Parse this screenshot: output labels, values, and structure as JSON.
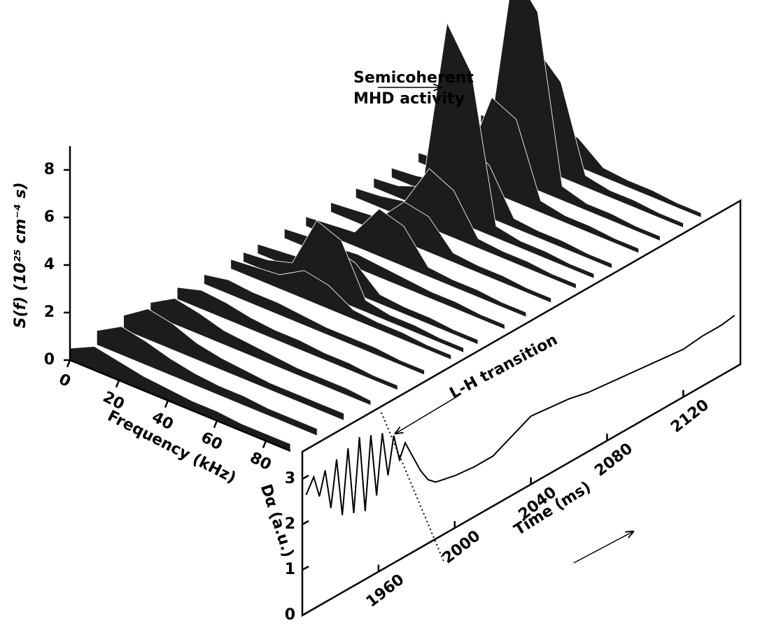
{
  "chart_data": {
    "type": "waterfall",
    "annotation": [
      "Semicoherent",
      "MHD activity"
    ],
    "surface": {
      "z_label": "S(f) (10²⁵ cm⁻⁴ s)",
      "x_label": "Frequency (kHz)",
      "xlim": [
        0,
        90
      ],
      "xticks": [
        0,
        20,
        40,
        60,
        80
      ],
      "zlim": [
        0,
        9
      ],
      "zticks": [
        0,
        2,
        4,
        6,
        8
      ],
      "frequencies": [
        0,
        10,
        20,
        30,
        40,
        50,
        60,
        70,
        80,
        90
      ],
      "times": [
        1920,
        1935,
        1950,
        1965,
        1980,
        1995,
        2010,
        2017,
        2025,
        2040,
        2052,
        2066,
        2080,
        2090,
        2100,
        2115,
        2127,
        2140,
        2150
      ],
      "values": [
        [
          0.5,
          1.0,
          0.8,
          0.6,
          0.5,
          0.4,
          0.4,
          0.3,
          0.3,
          0.3
        ],
        [
          0.6,
          1.2,
          1.0,
          0.7,
          0.5,
          0.4,
          0.4,
          0.3,
          0.3,
          0.3
        ],
        [
          0.6,
          1.3,
          1.1,
          0.7,
          0.5,
          0.4,
          0.3,
          0.3,
          0.3,
          0.3
        ],
        [
          0.5,
          1.1,
          0.9,
          0.6,
          0.5,
          0.4,
          0.3,
          0.3,
          0.3,
          0.2
        ],
        [
          0.5,
          0.8,
          0.7,
          0.5,
          0.4,
          0.4,
          0.3,
          0.3,
          0.2,
          0.2
        ],
        [
          0.4,
          0.6,
          0.5,
          0.5,
          0.4,
          0.3,
          0.3,
          0.3,
          0.2,
          0.2
        ],
        [
          0.4,
          0.5,
          0.6,
          1.2,
          1.0,
          0.4,
          0.3,
          0.3,
          0.2,
          0.2
        ],
        [
          0.4,
          0.5,
          0.8,
          3.0,
          2.6,
          0.5,
          0.3,
          0.3,
          0.2,
          0.2
        ],
        [
          0.4,
          0.5,
          0.6,
          1.6,
          1.3,
          0.4,
          0.3,
          0.3,
          0.2,
          0.2
        ],
        [
          0.4,
          0.5,
          0.5,
          0.6,
          0.5,
          0.4,
          0.3,
          0.3,
          0.2,
          0.2
        ],
        [
          0.4,
          0.5,
          0.6,
          2.0,
          1.7,
          0.4,
          0.3,
          0.3,
          0.2,
          0.2
        ],
        [
          0.4,
          0.5,
          0.6,
          1.7,
          1.5,
          0.4,
          0.3,
          0.3,
          0.2,
          0.2
        ],
        [
          0.4,
          0.5,
          0.7,
          2.5,
          2.0,
          0.4,
          0.3,
          0.3,
          0.2,
          0.2
        ],
        [
          0.4,
          0.5,
          0.9,
          8.2,
          6.5,
          0.5,
          0.3,
          0.3,
          0.2,
          0.2
        ],
        [
          0.4,
          0.5,
          0.7,
          2.8,
          2.2,
          0.4,
          0.3,
          0.3,
          0.2,
          0.2
        ],
        [
          0.4,
          0.5,
          1.0,
          4.0,
          3.5,
          0.5,
          0.3,
          0.3,
          0.2,
          0.2
        ],
        [
          0.5,
          0.6,
          1.2,
          8.8,
          7.5,
          0.6,
          0.3,
          0.3,
          0.2,
          0.2
        ],
        [
          0.5,
          0.6,
          1.0,
          5.0,
          4.0,
          0.5,
          0.3,
          0.3,
          0.2,
          0.2
        ],
        [
          0.5,
          0.6,
          0.8,
          1.5,
          1.2,
          0.4,
          0.3,
          0.3,
          0.2,
          0.2
        ]
      ]
    },
    "trace": {
      "y_label": "Dα (a.u.)",
      "x_label": "Time (ms)",
      "annotation": "L-H transition",
      "xlim": [
        1920,
        2150
      ],
      "xticks": [
        1960,
        2000,
        2040,
        2080,
        2120
      ],
      "ylim": [
        0,
        3.6
      ],
      "yticks": [
        0,
        1,
        2,
        3
      ],
      "x": [
        1922,
        1926,
        1929,
        1932,
        1935,
        1938,
        1941,
        1944,
        1947,
        1950,
        1953,
        1956,
        1959,
        1962,
        1965,
        1968,
        1971,
        1974,
        1978,
        1982,
        1986,
        1990,
        1995,
        2000,
        2010,
        2020,
        2030,
        2040,
        2050,
        2060,
        2070,
        2080,
        2090,
        2100,
        2110,
        2120,
        2130,
        2140,
        2147
      ],
      "values": [
        2.6,
        2.9,
        2.4,
        2.9,
        2.0,
        3.0,
        1.7,
        3.1,
        1.6,
        3.2,
        1.5,
        3.1,
        1.7,
        3.0,
        2.0,
        2.8,
        2.2,
        2.5,
        2.1,
        1.7,
        1.4,
        1.25,
        1.2,
        1.15,
        1.1,
        1.1,
        1.3,
        1.5,
        1.45,
        1.4,
        1.3,
        1.25,
        1.2,
        1.15,
        1.1,
        1.05,
        1.1,
        1.1,
        1.15
      ]
    }
  }
}
